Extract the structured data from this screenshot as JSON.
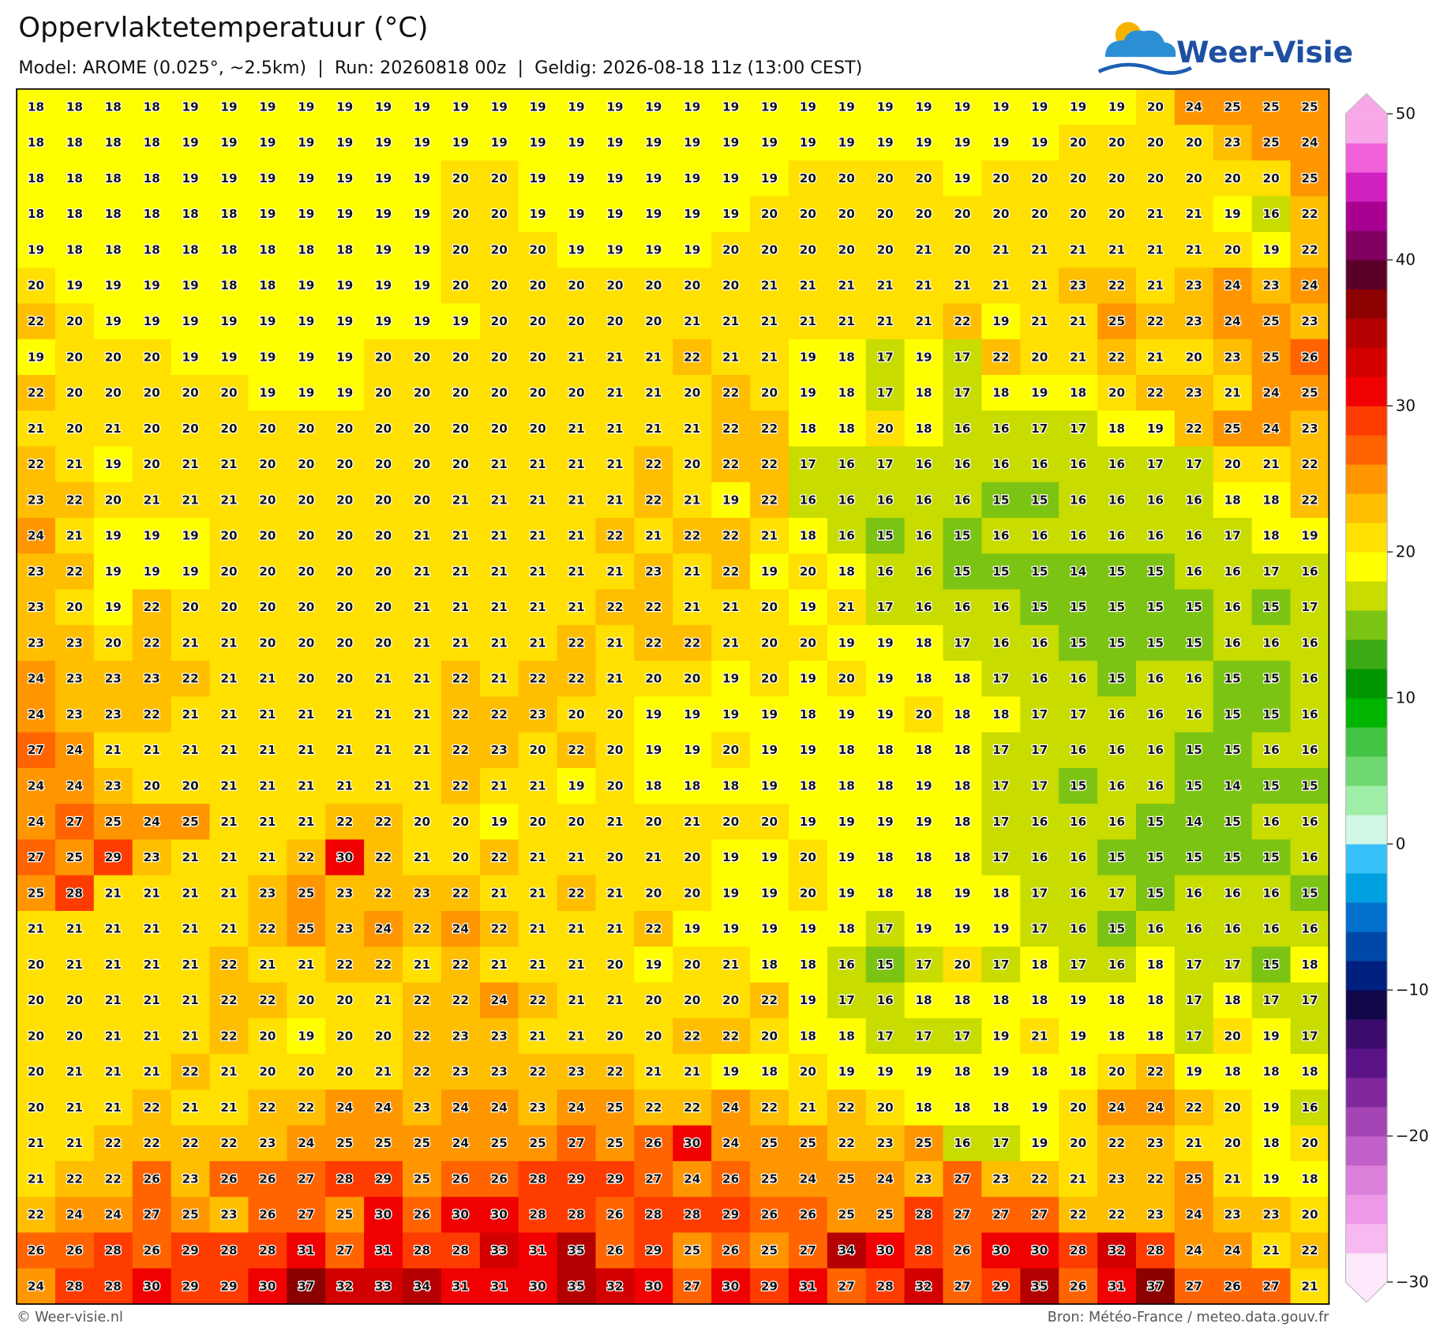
{
  "header": {
    "title": "Oppervlaktetemperatuur (°C)",
    "subtitle": "Model: AROME (0.025°, ~2.5km)  |  Run: 20260818 00z  |  Geldig: 2026-08-18 11z (13:00 CEST)"
  },
  "logo": "Weer-Visie",
  "map": {
    "values": [
      [
        18,
        18,
        18,
        18,
        19,
        19,
        19,
        19,
        19,
        19,
        19,
        19,
        19,
        19,
        19,
        19,
        19,
        19,
        19,
        19,
        19,
        19,
        19,
        19,
        19,
        19,
        19,
        19,
        19,
        20,
        24,
        25,
        25,
        25
      ],
      [
        18,
        18,
        18,
        18,
        19,
        19,
        19,
        19,
        19,
        19,
        19,
        19,
        19,
        19,
        19,
        19,
        19,
        19,
        19,
        19,
        19,
        19,
        19,
        19,
        19,
        19,
        19,
        20,
        20,
        20,
        20,
        23,
        25,
        24
      ],
      [
        18,
        18,
        18,
        18,
        19,
        19,
        19,
        19,
        19,
        19,
        19,
        20,
        20,
        19,
        19,
        19,
        19,
        19,
        19,
        19,
        20,
        20,
        20,
        20,
        19,
        20,
        20,
        20,
        20,
        20,
        20,
        20,
        20,
        25
      ],
      [
        18,
        18,
        18,
        18,
        18,
        18,
        19,
        19,
        19,
        19,
        19,
        20,
        20,
        19,
        19,
        19,
        19,
        19,
        19,
        20,
        20,
        20,
        20,
        20,
        20,
        20,
        20,
        20,
        20,
        21,
        21,
        19,
        16,
        22
      ],
      [
        19,
        18,
        18,
        18,
        18,
        18,
        18,
        18,
        18,
        19,
        19,
        20,
        20,
        20,
        19,
        19,
        19,
        19,
        20,
        20,
        20,
        20,
        20,
        21,
        20,
        21,
        21,
        21,
        21,
        21,
        21,
        20,
        19,
        22
      ],
      [
        20,
        19,
        19,
        19,
        19,
        18,
        18,
        19,
        19,
        19,
        19,
        20,
        20,
        20,
        20,
        20,
        20,
        20,
        20,
        21,
        21,
        21,
        21,
        21,
        21,
        21,
        21,
        23,
        22,
        21,
        23,
        24,
        23,
        24
      ],
      [
        22,
        20,
        19,
        19,
        19,
        19,
        19,
        19,
        19,
        19,
        19,
        19,
        20,
        20,
        20,
        20,
        20,
        21,
        21,
        21,
        21,
        21,
        21,
        21,
        22,
        19,
        21,
        21,
        25,
        22,
        23,
        24,
        25,
        23
      ],
      [
        19,
        20,
        20,
        20,
        19,
        19,
        19,
        19,
        19,
        20,
        20,
        20,
        20,
        20,
        21,
        21,
        21,
        22,
        21,
        21,
        19,
        18,
        17,
        19,
        17,
        22,
        20,
        21,
        22,
        21,
        20,
        23,
        25,
        26
      ],
      [
        22,
        20,
        20,
        20,
        20,
        20,
        19,
        19,
        19,
        20,
        20,
        20,
        20,
        20,
        20,
        21,
        21,
        20,
        22,
        20,
        19,
        18,
        17,
        18,
        17,
        18,
        19,
        18,
        20,
        22,
        23,
        21,
        24,
        25
      ],
      [
        21,
        20,
        21,
        20,
        20,
        20,
        20,
        20,
        20,
        20,
        20,
        20,
        20,
        20,
        21,
        21,
        21,
        21,
        22,
        22,
        18,
        18,
        20,
        18,
        16,
        16,
        17,
        17,
        18,
        19,
        22,
        25,
        24,
        23
      ],
      [
        22,
        21,
        19,
        20,
        21,
        21,
        20,
        20,
        20,
        20,
        20,
        20,
        21,
        21,
        21,
        21,
        22,
        20,
        22,
        22,
        17,
        16,
        17,
        16,
        16,
        16,
        16,
        16,
        16,
        17,
        17,
        20,
        21,
        22
      ],
      [
        23,
        22,
        20,
        21,
        21,
        21,
        20,
        20,
        20,
        20,
        20,
        21,
        21,
        21,
        21,
        21,
        22,
        21,
        19,
        22,
        16,
        16,
        16,
        16,
        16,
        15,
        15,
        16,
        16,
        16,
        16,
        18,
        18,
        22
      ],
      [
        24,
        21,
        19,
        19,
        19,
        20,
        20,
        20,
        20,
        20,
        21,
        21,
        21,
        21,
        21,
        22,
        21,
        22,
        22,
        21,
        18,
        16,
        15,
        16,
        15,
        16,
        16,
        16,
        16,
        16,
        16,
        17,
        18,
        19
      ],
      [
        23,
        22,
        19,
        19,
        19,
        20,
        20,
        20,
        20,
        20,
        21,
        21,
        21,
        21,
        21,
        21,
        23,
        21,
        22,
        19,
        20,
        18,
        16,
        16,
        15,
        15,
        15,
        14,
        15,
        15,
        16,
        16,
        17,
        16
      ],
      [
        23,
        20,
        19,
        22,
        20,
        20,
        20,
        20,
        20,
        20,
        21,
        21,
        21,
        21,
        21,
        22,
        22,
        21,
        21,
        20,
        19,
        21,
        17,
        16,
        16,
        16,
        15,
        15,
        15,
        15,
        15,
        16,
        15,
        17
      ],
      [
        23,
        23,
        20,
        22,
        21,
        21,
        20,
        20,
        20,
        20,
        21,
        21,
        21,
        21,
        22,
        21,
        22,
        22,
        21,
        20,
        20,
        19,
        19,
        18,
        17,
        16,
        16,
        15,
        15,
        15,
        15,
        16,
        16,
        16
      ],
      [
        24,
        23,
        23,
        23,
        22,
        21,
        21,
        20,
        20,
        21,
        21,
        22,
        21,
        22,
        22,
        21,
        20,
        20,
        19,
        20,
        19,
        20,
        19,
        18,
        18,
        17,
        16,
        16,
        15,
        16,
        16,
        15,
        15,
        16
      ],
      [
        24,
        23,
        23,
        22,
        21,
        21,
        21,
        21,
        21,
        21,
        21,
        22,
        22,
        23,
        20,
        20,
        19,
        19,
        19,
        19,
        18,
        19,
        19,
        20,
        18,
        18,
        17,
        17,
        16,
        16,
        16,
        15,
        15,
        16
      ],
      [
        27,
        24,
        21,
        21,
        21,
        21,
        21,
        21,
        21,
        21,
        21,
        22,
        23,
        20,
        22,
        20,
        19,
        19,
        20,
        19,
        19,
        18,
        18,
        18,
        18,
        17,
        17,
        16,
        16,
        16,
        15,
        15,
        16,
        16
      ],
      [
        24,
        24,
        23,
        20,
        20,
        21,
        21,
        21,
        21,
        21,
        21,
        22,
        21,
        21,
        19,
        20,
        18,
        18,
        18,
        19,
        18,
        18,
        18,
        19,
        18,
        17,
        17,
        15,
        16,
        16,
        15,
        14,
        15,
        15
      ],
      [
        24,
        27,
        25,
        24,
        25,
        21,
        21,
        21,
        22,
        22,
        20,
        20,
        19,
        20,
        20,
        21,
        20,
        21,
        20,
        20,
        19,
        19,
        19,
        19,
        18,
        17,
        16,
        16,
        16,
        15,
        14,
        15,
        16,
        16
      ],
      [
        27,
        25,
        29,
        23,
        21,
        21,
        21,
        22,
        30,
        22,
        21,
        20,
        22,
        21,
        21,
        20,
        21,
        20,
        19,
        19,
        20,
        19,
        18,
        18,
        18,
        17,
        16,
        16,
        15,
        15,
        15,
        15,
        15,
        16
      ],
      [
        25,
        28,
        21,
        21,
        21,
        21,
        23,
        25,
        23,
        22,
        23,
        22,
        21,
        21,
        22,
        21,
        20,
        20,
        19,
        19,
        20,
        19,
        18,
        18,
        19,
        18,
        17,
        16,
        17,
        15,
        16,
        16,
        16,
        15
      ],
      [
        21,
        21,
        21,
        21,
        21,
        21,
        22,
        25,
        23,
        24,
        22,
        24,
        22,
        21,
        21,
        21,
        22,
        19,
        19,
        19,
        19,
        18,
        17,
        19,
        19,
        19,
        17,
        16,
        15,
        16,
        16,
        16,
        16,
        16
      ],
      [
        20,
        21,
        21,
        21,
        21,
        22,
        21,
        21,
        22,
        22,
        21,
        22,
        21,
        21,
        21,
        20,
        19,
        20,
        21,
        18,
        18,
        16,
        15,
        17,
        20,
        17,
        18,
        17,
        16,
        18,
        17,
        17,
        15,
        18
      ],
      [
        20,
        20,
        21,
        21,
        21,
        22,
        22,
        20,
        20,
        21,
        22,
        22,
        24,
        22,
        21,
        21,
        20,
        20,
        20,
        22,
        19,
        17,
        16,
        18,
        18,
        18,
        18,
        19,
        18,
        18,
        17,
        18,
        17,
        17
      ],
      [
        20,
        20,
        21,
        21,
        21,
        22,
        20,
        19,
        20,
        20,
        22,
        23,
        23,
        21,
        21,
        20,
        20,
        22,
        22,
        20,
        18,
        18,
        17,
        17,
        17,
        19,
        21,
        19,
        18,
        18,
        17,
        20,
        19,
        17
      ],
      [
        20,
        21,
        21,
        21,
        22,
        21,
        20,
        20,
        20,
        21,
        22,
        23,
        23,
        22,
        23,
        22,
        21,
        21,
        19,
        18,
        20,
        19,
        19,
        19,
        18,
        19,
        18,
        18,
        20,
        22,
        19,
        18,
        18,
        18
      ],
      [
        20,
        21,
        21,
        22,
        21,
        21,
        22,
        22,
        24,
        24,
        23,
        24,
        24,
        23,
        24,
        25,
        22,
        22,
        24,
        22,
        21,
        22,
        20,
        18,
        18,
        18,
        19,
        20,
        24,
        24,
        22,
        20,
        19,
        16
      ],
      [
        21,
        21,
        22,
        22,
        22,
        22,
        23,
        24,
        25,
        25,
        25,
        24,
        25,
        25,
        27,
        25,
        26,
        30,
        24,
        25,
        25,
        22,
        23,
        25,
        16,
        17,
        19,
        20,
        22,
        23,
        21,
        20,
        18,
        20
      ],
      [
        21,
        22,
        22,
        26,
        23,
        26,
        26,
        27,
        28,
        29,
        25,
        26,
        26,
        28,
        29,
        29,
        27,
        24,
        26,
        25,
        24,
        25,
        24,
        23,
        27,
        23,
        22,
        21,
        23,
        22,
        25,
        21,
        19,
        18
      ],
      [
        22,
        24,
        24,
        27,
        25,
        23,
        26,
        27,
        25,
        30,
        26,
        30,
        30,
        28,
        28,
        26,
        28,
        28,
        29,
        26,
        26,
        25,
        25,
        28,
        27,
        27,
        27,
        22,
        22,
        23,
        24,
        23,
        23,
        20
      ],
      [
        26,
        26,
        28,
        26,
        29,
        28,
        28,
        31,
        27,
        31,
        28,
        28,
        33,
        31,
        35,
        26,
        29,
        25,
        26,
        25,
        27,
        34,
        30,
        28,
        26,
        30,
        30,
        28,
        32,
        28,
        24,
        24,
        21,
        22
      ],
      [
        24,
        28,
        28,
        30,
        29,
        29,
        30,
        37,
        32,
        33,
        34,
        31,
        31,
        30,
        35,
        32,
        30,
        27,
        30,
        29,
        31,
        27,
        28,
        32,
        27,
        29,
        35,
        26,
        31,
        37,
        27,
        26,
        27,
        21
      ]
    ]
  },
  "colorbar": {
    "colors": [
      "#fde8fb",
      "#f8b8f0",
      "#ee98e8",
      "#dc80dc",
      "#c060c8",
      "#a444b4",
      "#80289c",
      "#5a1488",
      "#3c0c6c",
      "#100848",
      "#002080",
      "#0048a8",
      "#0070cc",
      "#00a0e0",
      "#38c0f8",
      "#d0f8e4",
      "#a0eea8",
      "#70d870",
      "#44c444",
      "#00b400",
      "#009600",
      "#3caa14",
      "#7cc414",
      "#c8dc00",
      "#ffff00",
      "#ffe000",
      "#ffbe00",
      "#ff9600",
      "#ff6400",
      "#ff3c00",
      "#f00000",
      "#d20000",
      "#b40000",
      "#8c0000",
      "#5a0028",
      "#800060",
      "#a80090",
      "#d020c0",
      "#f060d8",
      "#f8a8e8"
    ],
    "ticks": [
      50,
      40,
      30,
      20,
      10,
      0,
      {
        "value": -10,
        "label": "−10"
      },
      {
        "value": -20,
        "label": "−20"
      },
      {
        "value": -30,
        "label": "−30"
      }
    ]
  },
  "footer": {
    "left": "© Weer-visie.nl",
    "right": "Bron: Météo-France / meteo.data.gouv.fr"
  }
}
